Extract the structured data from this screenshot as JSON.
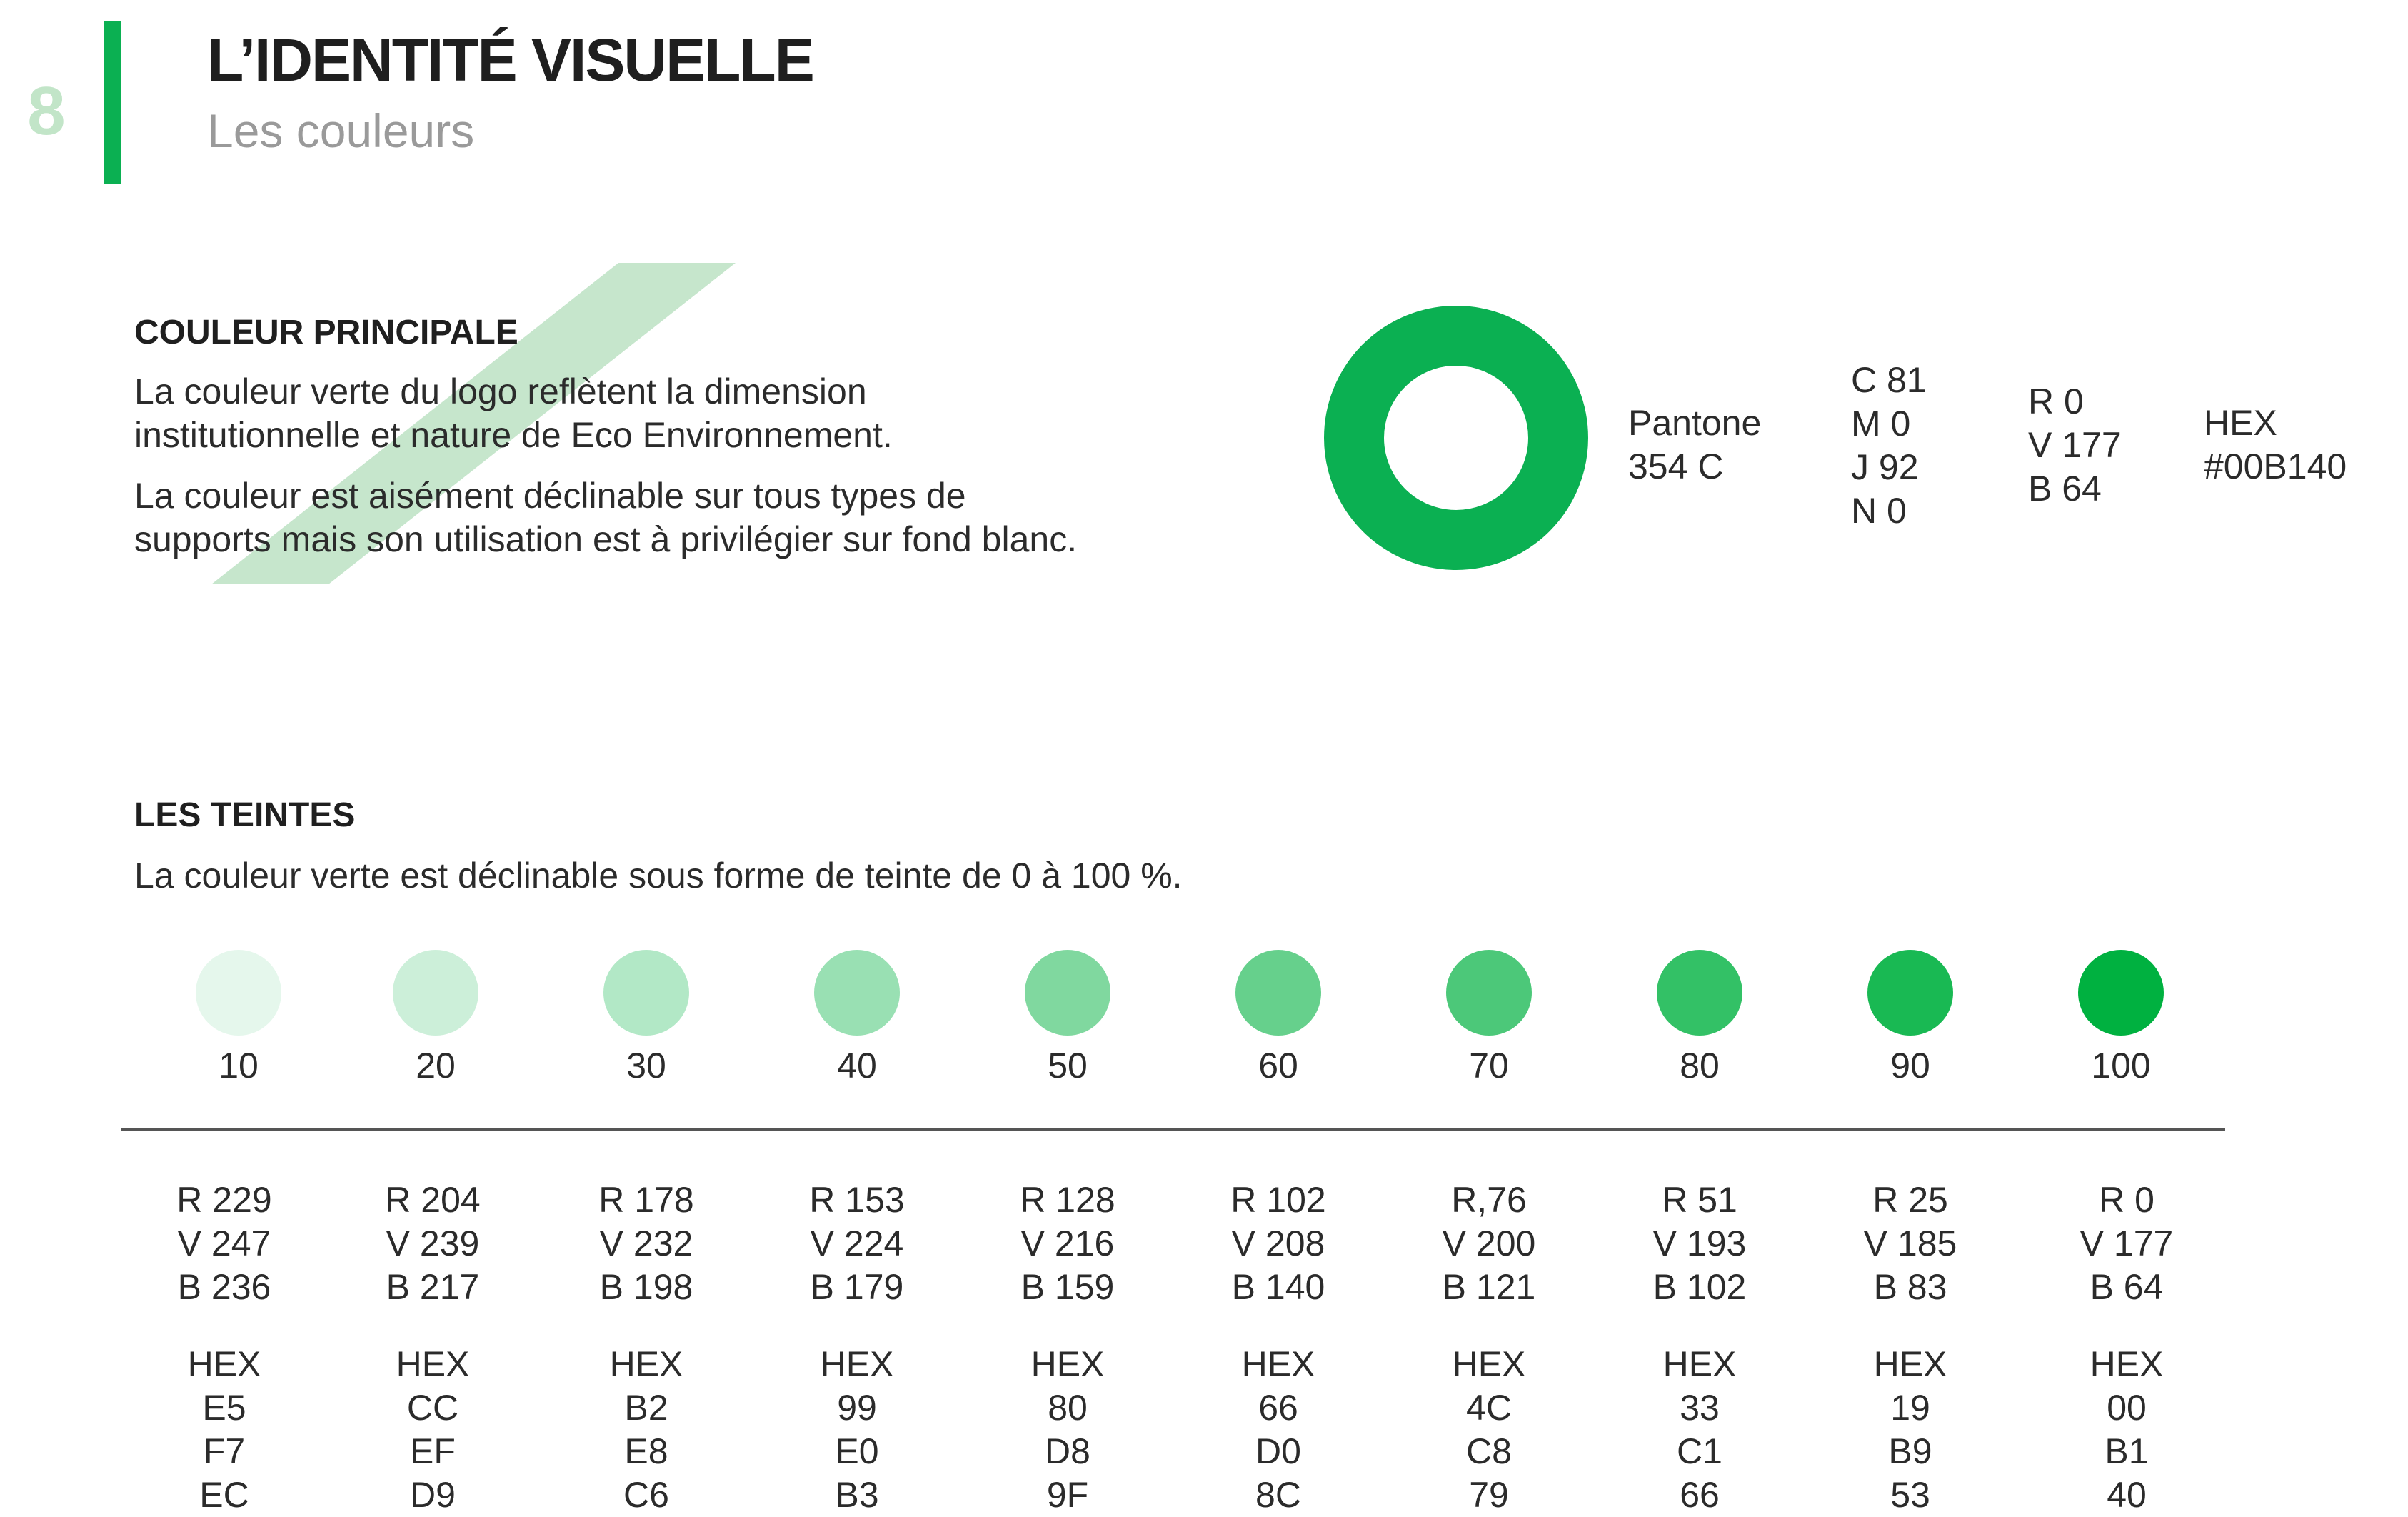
{
  "header": {
    "page_number": "8",
    "title": "L’IDENTITÉ VISUELLE",
    "subtitle": "Les couleurs"
  },
  "colors": {
    "brand_green": "#00B140",
    "accent_light": "#C2E5C8",
    "stripe": "#C6E6CC"
  },
  "main_color": {
    "heading": "COULEUR PRINCIPALE",
    "paragraph1": [
      "La couleur verte du logo reflètent la dimension",
      "institutionnelle et nature de Eco Environnement."
    ],
    "paragraph2": [
      "La couleur est aisément déclinable sur tous types de",
      "supports mais son utilisation est à privilégier sur fond blanc."
    ],
    "pantone": [
      "Pantone",
      "354 C"
    ],
    "cmyk": [
      "C 81",
      "M 0",
      "J 92",
      "N 0"
    ],
    "rgb": [
      "R 0",
      "V 177",
      "B 64"
    ],
    "hex": [
      "HEX",
      "#00B140"
    ]
  },
  "tints": {
    "heading": "LES TEINTES",
    "intro": "La couleur verte est déclinable sous forme de teinte de 0 à 100 %.",
    "items": [
      {
        "label": "10",
        "color": "#E5F7EC",
        "rgb": [
          "R 229",
          "V 247",
          "B 236"
        ],
        "hex": [
          "HEX",
          "E5",
          "F7",
          "EC"
        ]
      },
      {
        "label": "20",
        "color": "#CCEFD9",
        "rgb": [
          "R 204",
          "V 239",
          "B 217"
        ],
        "hex": [
          "HEX",
          "CC",
          "EF",
          "D9"
        ]
      },
      {
        "label": "30",
        "color": "#B2E8C6",
        "rgb": [
          "R 178",
          "V 232",
          "B 198"
        ],
        "hex": [
          "HEX",
          "B2",
          "E8",
          "C6"
        ]
      },
      {
        "label": "40",
        "color": "#99E0B3",
        "rgb": [
          "R 153",
          "V 224",
          "B 179"
        ],
        "hex": [
          "HEX",
          "99",
          "E0",
          "B3"
        ]
      },
      {
        "label": "50",
        "color": "#80D89F",
        "rgb": [
          "R 128",
          "V 216",
          "B 159"
        ],
        "hex": [
          "HEX",
          "80",
          "D8",
          "9F"
        ]
      },
      {
        "label": "60",
        "color": "#66D08C",
        "rgb": [
          "R 102",
          "V 208",
          "B 140"
        ],
        "hex": [
          "HEX",
          "66",
          "D0",
          "8C"
        ]
      },
      {
        "label": "70",
        "color": "#4CC879",
        "rgb": [
          "R,76",
          "V 200",
          "B 121"
        ],
        "hex": [
          "HEX",
          "4C",
          "C8",
          "79"
        ]
      },
      {
        "label": "80",
        "color": "#33C166",
        "rgb": [
          "R 51",
          "V 193",
          "B 102"
        ],
        "hex": [
          "HEX",
          "33",
          "C1",
          "66"
        ]
      },
      {
        "label": "90",
        "color": "#19B953",
        "rgb": [
          "R 25",
          "V 185",
          "B 83"
        ],
        "hex": [
          "HEX",
          "19",
          "B9",
          "53"
        ]
      },
      {
        "label": "100",
        "color": "#00B140",
        "rgb": [
          "R 0",
          "V 177",
          "B 64"
        ],
        "hex": [
          "HEX",
          "00",
          "B1",
          "40"
        ]
      }
    ]
  }
}
